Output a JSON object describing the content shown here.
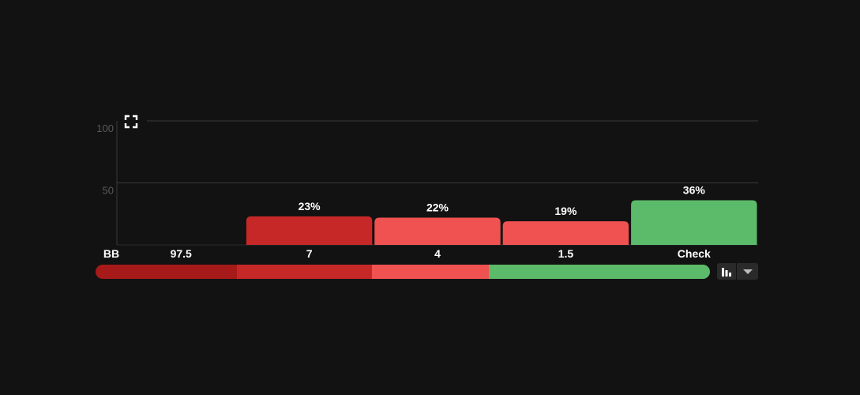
{
  "chart_data": {
    "type": "bar",
    "title": "",
    "xlabel": "",
    "ylabel": "",
    "ylim": [
      0,
      100
    ],
    "yticks": [
      50,
      100
    ],
    "grid": true,
    "categories": [
      "97.5",
      "7",
      "4",
      "1.5",
      "Check"
    ],
    "axis_unit_label": "BB",
    "values": [
      0,
      23,
      22,
      19,
      36
    ],
    "value_labels": [
      "",
      "23%",
      "22%",
      "19%",
      "36%"
    ],
    "colors": [
      "#a61a1a",
      "#c62828",
      "#f05252",
      "#f05252",
      "#5cbb6a"
    ]
  },
  "strategy_bar": {
    "segments": [
      {
        "fraction": 23,
        "color": "#a61a1a"
      },
      {
        "fraction": 22,
        "color": "#c62828"
      },
      {
        "fraction": 19,
        "color": "#f05252"
      },
      {
        "fraction": 36,
        "color": "#5cbb6a"
      }
    ]
  },
  "toolbar": {
    "chart_type_icon": "bar-chart-icon",
    "dropdown_icon": "caret-down-icon",
    "expand_icon": "expand-icon"
  }
}
